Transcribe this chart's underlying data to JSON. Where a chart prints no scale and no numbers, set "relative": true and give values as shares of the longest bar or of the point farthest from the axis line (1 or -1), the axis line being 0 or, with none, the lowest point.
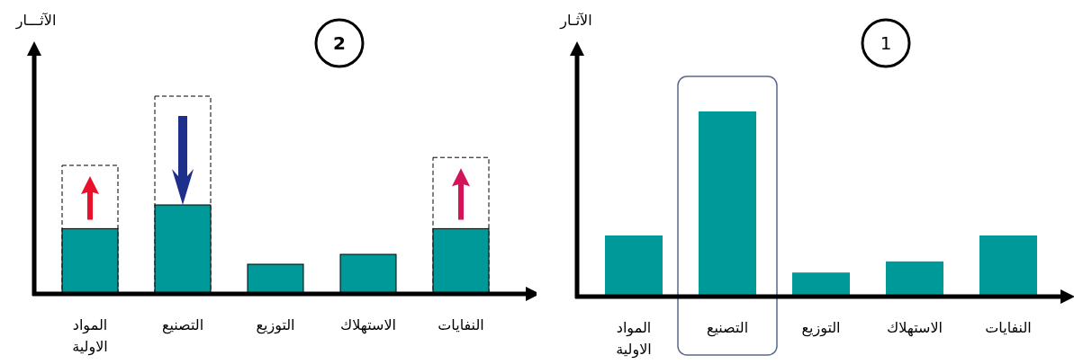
{
  "chart_data": [
    {
      "type": "bar",
      "title": "2",
      "ylabel": "الآثـــار",
      "relative": true,
      "categories": [
        "المواد\nالاولية",
        "التصنيع",
        "التوزيع",
        "الاستهلاك",
        "النفايات"
      ],
      "series": [
        {
          "color": "#000000",
          "line_style": "dashed",
          "values": [
            0.65,
            1,
            null,
            null,
            0.69
          ]
        },
        {
          "color": "#009999",
          "values": [
            0.33,
            0.45,
            0.15,
            0.2,
            0.33
          ]
        }
      ]
    },
    {
      "type": "bar",
      "title": "1",
      "ylabel": "الآثـار",
      "relative": true,
      "categories": [
        "المواد\nالاولية",
        "التصنيع",
        "التوزيع",
        "الاستهلاك",
        "النفايات"
      ],
      "series": [
        {
          "color": "#009999",
          "values": [
            0.33,
            1,
            0.13,
            0.19,
            0.33
          ]
        }
      ]
    }
  ]
}
